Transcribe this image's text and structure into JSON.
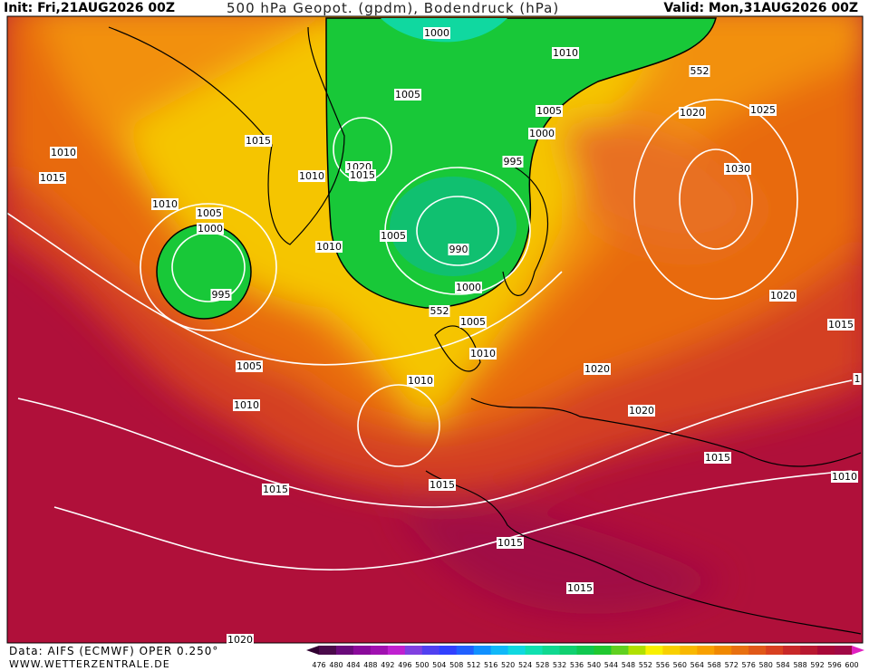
{
  "header": {
    "init": "Init: Fri,21AUG2026 00Z",
    "title": "500 hPa Geopot. (gpdm), Bodendruck (hPa)",
    "valid": "Valid: Mon,31AUG2026 00Z"
  },
  "map": {
    "isobar_labels": [
      "1000",
      "1010",
      "552",
      "1005",
      "1005",
      "1020",
      "1025",
      "1010",
      "1015",
      "1000",
      "1020",
      "1015",
      "995",
      "1030",
      "1015",
      "1010",
      "1010",
      "1005",
      "1000",
      "1005",
      "990",
      "1010",
      "995",
      "1000",
      "552",
      "1005",
      "1020",
      "1015",
      "1010",
      "1005",
      "1020",
      "1010",
      "1010",
      "1020",
      "1015",
      "1015",
      "1015",
      "1010",
      "1015",
      "1015",
      "1020",
      "1"
    ]
  },
  "footer": {
    "source": "Data: AIFS (ECMWF) OPER 0.250°",
    "url": "WWW.WETTERZENTRALE.DE"
  },
  "colorbar": {
    "labels": [
      "476",
      "480",
      "484",
      "488",
      "492",
      "496",
      "500",
      "504",
      "508",
      "512",
      "516",
      "520",
      "524",
      "528",
      "532",
      "536",
      "540",
      "544",
      "548",
      "552",
      "556",
      "560",
      "564",
      "568",
      "572",
      "576",
      "580",
      "584",
      "588",
      "592",
      "596",
      "600"
    ]
  }
}
